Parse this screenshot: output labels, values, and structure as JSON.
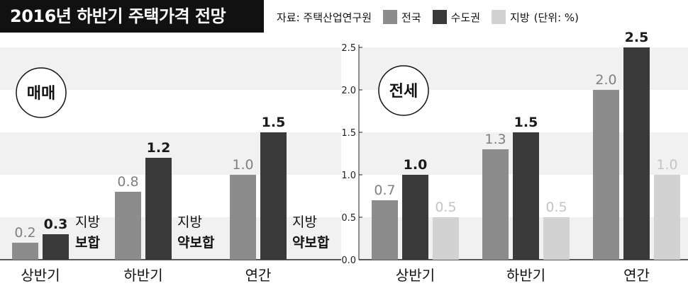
{
  "title": "2016년 하반기 주택가격 전망",
  "source": "자료: 주택산업연구원",
  "unit_note": "(단위: %)",
  "colors": {
    "national": "#8c8c8c",
    "capital": "#3a3a3a",
    "regional": "#d2d2d2"
  },
  "chart_data": [
    {
      "type": "bar",
      "title": "매매",
      "categories": [
        "상반기",
        "하반기",
        "연간"
      ],
      "ylim": [
        0,
        2.5
      ],
      "grid": "banded",
      "series": [
        {
          "name": "전국",
          "values": [
            0.2,
            0.8,
            1.0
          ]
        },
        {
          "name": "수도권",
          "values": [
            0.3,
            1.2,
            1.5
          ]
        }
      ],
      "value_labels": [
        [
          "0.2",
          "0.3"
        ],
        [
          "0.8",
          "1.2"
        ],
        [
          "1.0",
          "1.5"
        ]
      ],
      "annotations": [
        {
          "line1": "지방",
          "line2": "보합"
        },
        {
          "line1": "지방",
          "line2": "약보합"
        },
        {
          "line1": "지방",
          "line2": "약보합"
        }
      ]
    },
    {
      "type": "bar",
      "title": "전세",
      "categories": [
        "상반기",
        "하반기",
        "연간"
      ],
      "yticks": [
        "0.0",
        "0.5",
        "1.0",
        "1.5",
        "2.0",
        "2.5"
      ],
      "ylim": [
        0,
        2.5
      ],
      "grid": "banded",
      "series": [
        {
          "name": "전국",
          "values": [
            0.7,
            1.3,
            2.0
          ]
        },
        {
          "name": "수도권",
          "values": [
            1.0,
            1.5,
            2.5
          ]
        },
        {
          "name": "지방",
          "values": [
            0.5,
            0.5,
            1.0
          ]
        }
      ],
      "value_labels": [
        [
          "0.7",
          "1.0",
          "0.5"
        ],
        [
          "1.3",
          "1.5",
          "0.5"
        ],
        [
          "2.0",
          "2.5",
          "1.0"
        ]
      ]
    }
  ],
  "legend": [
    {
      "label": "전국",
      "color": "#8c8c8c"
    },
    {
      "label": "수도권",
      "color": "#3a3a3a"
    },
    {
      "label": "지방",
      "color": "#d2d2d2"
    }
  ]
}
